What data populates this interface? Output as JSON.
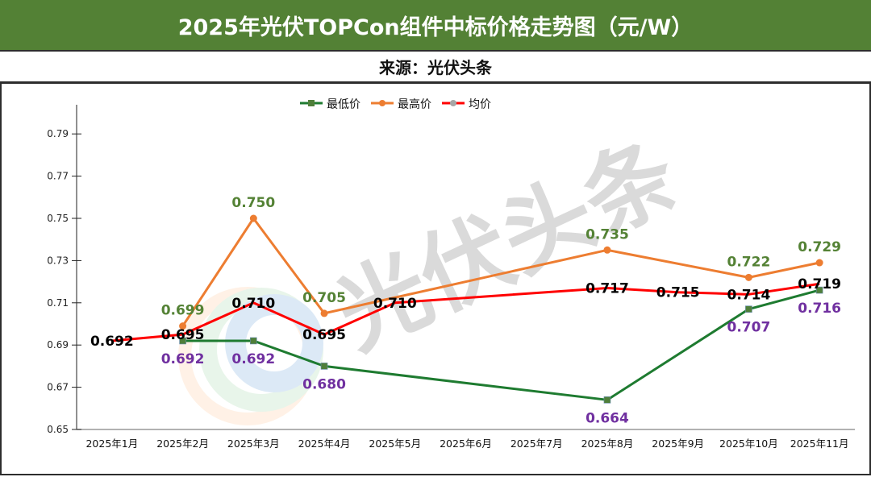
{
  "header": {
    "title": "2025年光伏TOPCon组件中标价格走势图（元/W）",
    "source": "来源：光伏头条"
  },
  "watermark": {
    "text": "光伏头条",
    "logo": "circular-logo-icon"
  },
  "colors": {
    "title_bg": "#538135",
    "min_line": "#1e7b30",
    "min_marker": "#4f7f3a",
    "max_line": "#ed7d31",
    "avg_line": "#ff0000",
    "avg_marker": "#a6a6a6",
    "max_label": "#548235",
    "min_label": "#7030a0",
    "avg_label": "#000000"
  },
  "chart_data": {
    "type": "line",
    "title": "2025年光伏TOPCon组件中标价格走势图（元/W）",
    "subtitle": "来源：光伏头条",
    "xlabel": "",
    "ylabel": "",
    "ylim": [
      0.65,
      0.8
    ],
    "yticks": [
      "0.65",
      "0.67",
      "0.69",
      "0.71",
      "0.73",
      "0.75",
      "0.77",
      "0.79"
    ],
    "grid": false,
    "legend_position": "top-center",
    "categories": [
      "2025年1月",
      "2025年2月",
      "2025年3月",
      "2025年4月",
      "2025年5月",
      "2025年6月",
      "2025年7月",
      "2025年8月",
      "2025年9月",
      "2025年10月",
      "2025年11月"
    ],
    "series": [
      {
        "name": "最低价",
        "marker": "square",
        "values": [
          null,
          0.692,
          0.692,
          0.68,
          null,
          null,
          null,
          0.664,
          null,
          0.707,
          0.716
        ],
        "labels": [
          null,
          "0.692",
          "0.692",
          "0.680",
          null,
          null,
          null,
          "0.664",
          null,
          "0.707",
          "0.716"
        ]
      },
      {
        "name": "最高价",
        "marker": "circle",
        "values": [
          null,
          0.699,
          0.75,
          0.705,
          null,
          null,
          null,
          0.735,
          null,
          0.722,
          0.729
        ],
        "labels": [
          null,
          "0.699",
          "0.750",
          "0.705",
          null,
          null,
          null,
          "0.735",
          null,
          "0.722",
          "0.729"
        ]
      },
      {
        "name": "均价",
        "marker": "circle",
        "values": [
          0.692,
          0.695,
          0.71,
          0.695,
          0.71,
          null,
          null,
          0.717,
          0.715,
          0.714,
          0.719
        ],
        "labels": [
          "0.692",
          "0.695",
          "0.710",
          "0.695",
          "0.710",
          null,
          null,
          "0.717",
          "0.715",
          "0.714",
          "0.719"
        ]
      }
    ]
  }
}
